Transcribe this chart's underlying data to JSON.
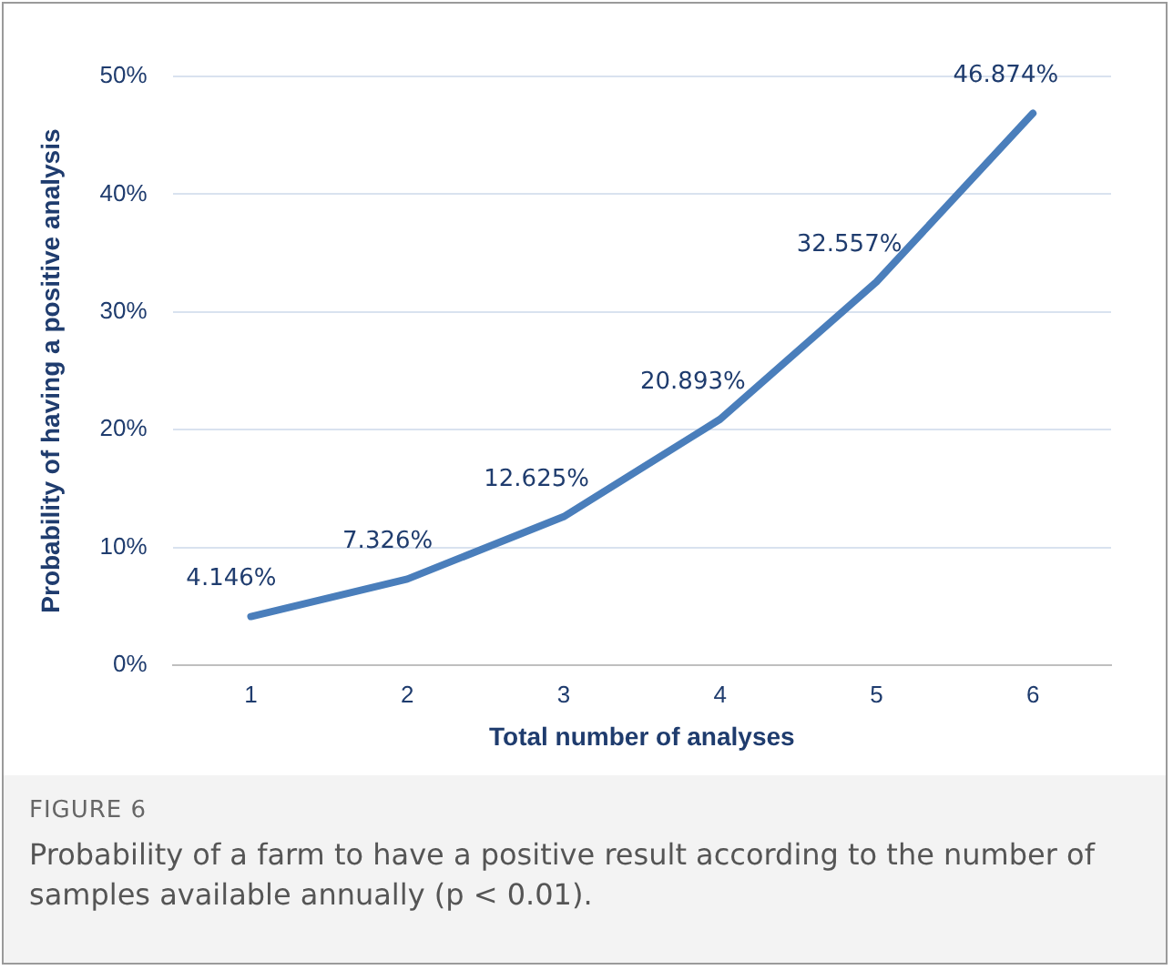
{
  "chart_data": {
    "type": "line",
    "xlabel": "Total number of analyses",
    "ylabel": "Probability of having a positive analysis",
    "categories": [
      "1",
      "2",
      "3",
      "4",
      "5",
      "6"
    ],
    "series": [
      {
        "color": "#4a7ebb",
        "values": [
          4.146,
          7.326,
          12.625,
          20.893,
          32.557,
          46.874
        ],
        "value_labels": [
          "4.146%",
          "7.326%",
          "12.625%",
          "20.893%",
          "32.557%",
          "46.874%"
        ]
      }
    ],
    "ylim": [
      0,
      50
    ],
    "yticks": [
      {
        "value": 0,
        "label": "0%"
      },
      {
        "value": 10,
        "label": "10%"
      },
      {
        "value": 20,
        "label": "20%"
      },
      {
        "value": 30,
        "label": "30%"
      },
      {
        "value": 40,
        "label": "40%"
      },
      {
        "value": 50,
        "label": "50%"
      }
    ],
    "grid": "y",
    "legend": false,
    "marker": "none",
    "line_style": "solid",
    "annotations": [
      "FIGURE 6",
      "Probability of a farm to have a positive result according to the number of samples available annually (p < 0.01)."
    ]
  }
}
